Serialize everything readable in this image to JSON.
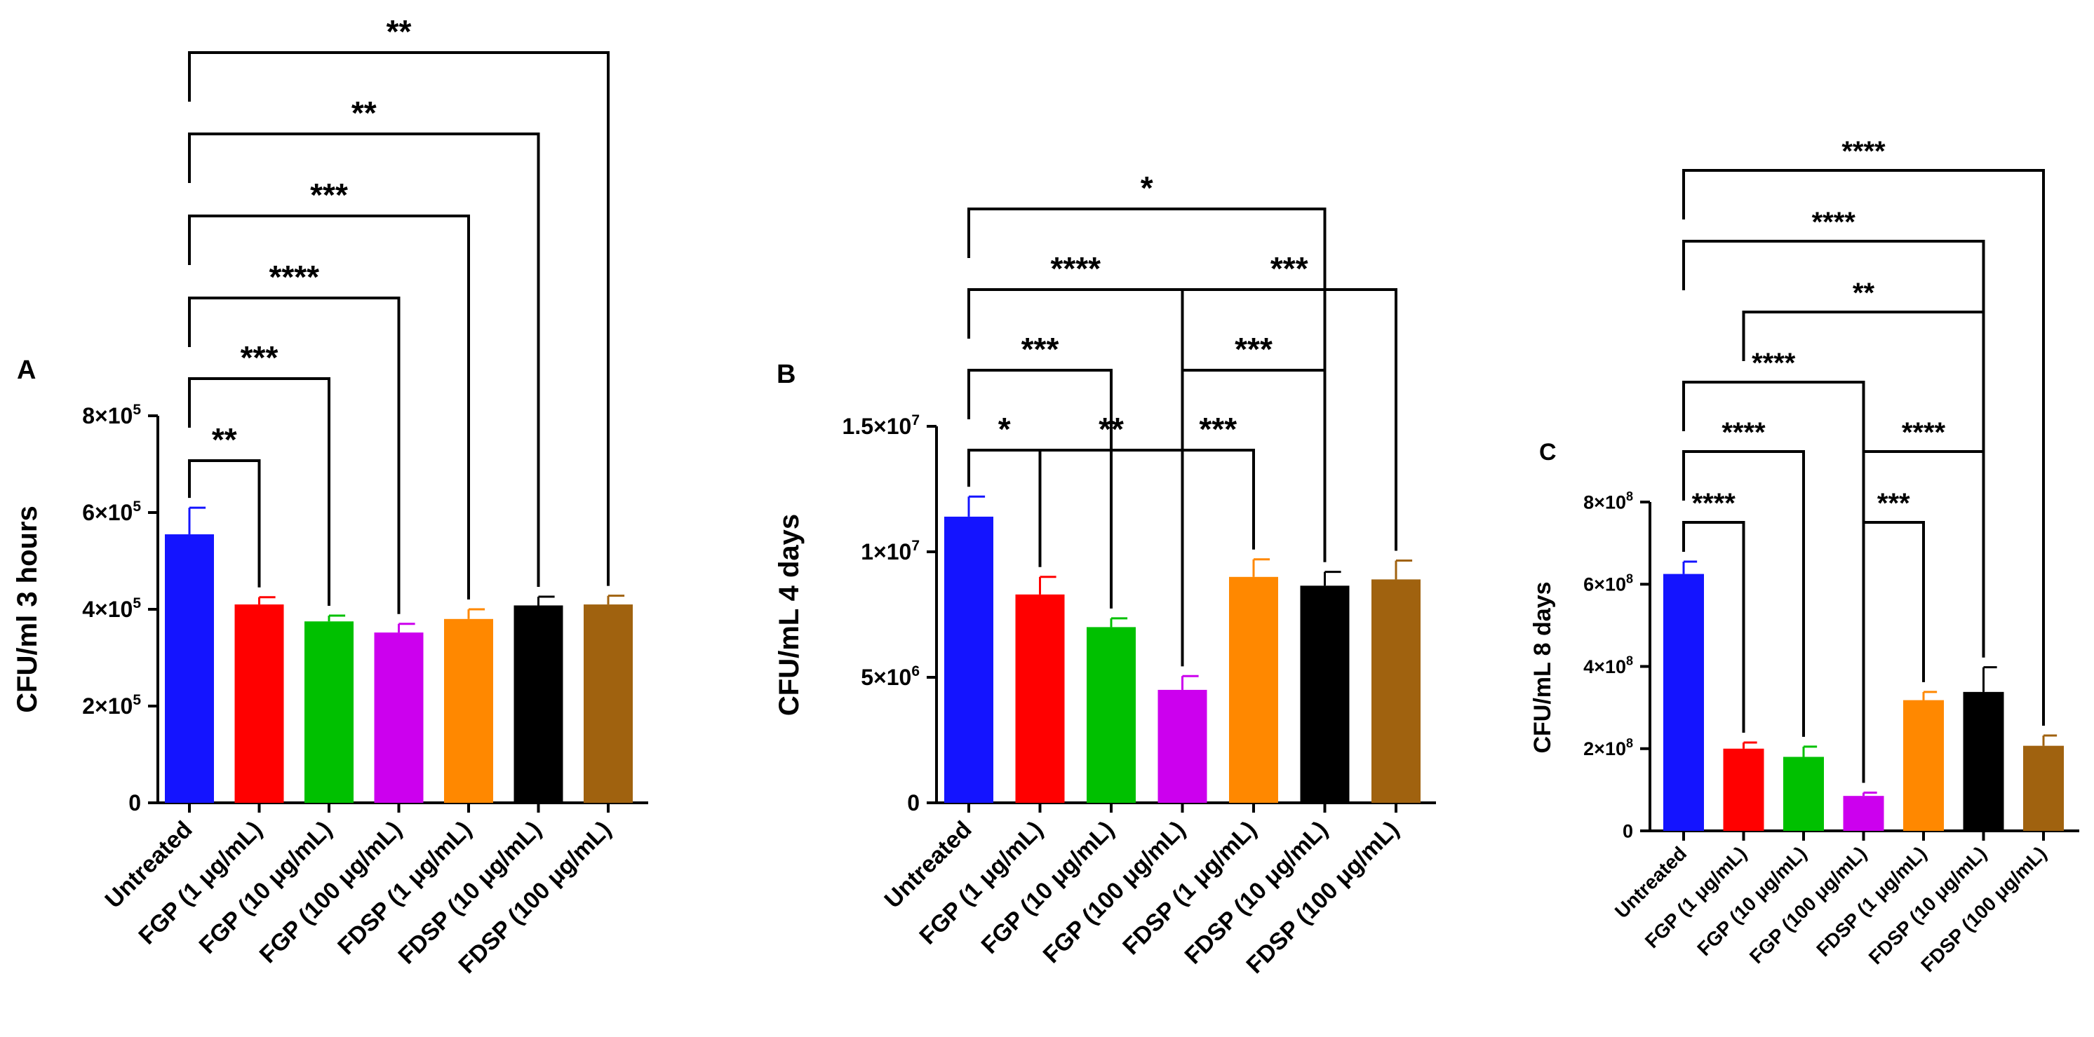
{
  "chart_data": [
    {
      "type": "bar",
      "panel_label": "A",
      "ylabel": "CFU/ml 3 hours",
      "ylim": [
        0,
        800000
      ],
      "yticks": [
        {
          "value": 0,
          "label": "0",
          "exp": ""
        },
        {
          "value": 200000,
          "label": "2×10",
          "exp": "5"
        },
        {
          "value": 400000,
          "label": "4×10",
          "exp": "5"
        },
        {
          "value": 600000,
          "label": "6×10",
          "exp": "5"
        },
        {
          "value": 800000,
          "label": "8×10",
          "exp": "5"
        }
      ],
      "categories": [
        "Untreated",
        "FGP (1 μg/mL)",
        "FGP (10 μg/mL)",
        "FGP (100 μg/mL)",
        "FDSP (1 μg/mL)",
        "FDSP (10 μg/mL)",
        "FDSP (100 μg/mL)"
      ],
      "values": [
        555000,
        410000,
        375000,
        352000,
        380000,
        408000,
        410000
      ],
      "errors": [
        55000,
        15000,
        12000,
        18000,
        20000,
        18000,
        18000
      ],
      "colors": [
        "#1414ff",
        "#ff0000",
        "#00c000",
        "#cc00ee",
        "#ff8800",
        "#000000",
        "#a0620f"
      ],
      "comparisons": [
        {
          "from": 0,
          "to": 1,
          "label": "**",
          "level": 345000
        },
        {
          "from": 0,
          "to": 2,
          "label": "***",
          "level": 365000
        },
        {
          "from": 0,
          "to": 3,
          "label": "****",
          "level": 380000
        },
        {
          "from": 0,
          "to": 4,
          "label": "***",
          "level": 395000
        },
        {
          "from": 0,
          "to": 5,
          "label": "**",
          "level": 410000
        },
        {
          "from": 0,
          "to": 6,
          "label": "**",
          "level": 425000
        }
      ]
    },
    {
      "type": "bar",
      "panel_label": "B",
      "ylabel": "CFU/mL 4 days",
      "ylim": [
        0,
        15000000
      ],
      "yticks": [
        {
          "value": 0,
          "label": "0",
          "exp": ""
        },
        {
          "value": 5000000,
          "label": "5×10",
          "exp": "6"
        },
        {
          "value": 10000000,
          "label": "1×10",
          "exp": "7"
        },
        {
          "value": 15000000,
          "label": "1.5×10",
          "exp": "7"
        }
      ],
      "categories": [
        "Untreated",
        "FGP (1 μg/mL)",
        "FGP (10 μg/mL)",
        "FGP (100 μg/mL)",
        "FDSP (1 μg/mL)",
        "FDSP (10 μg/mL)",
        "FDSP (100 μg/mL)"
      ],
      "values": [
        11400000,
        8300000,
        7000000,
        4500000,
        9000000,
        8650000,
        8900000
      ],
      "errors": [
        800000,
        700000,
        350000,
        550000,
        700000,
        550000,
        750000
      ],
      "colors": [
        "#1414ff",
        "#ff0000",
        "#00c000",
        "#cc00ee",
        "#ff8800",
        "#000000",
        "#a0620f"
      ],
      "comparisons": [
        {
          "from": 0,
          "to": 1,
          "label": "*",
          "level": 0
        },
        {
          "from": 1,
          "to": 3,
          "label": "**",
          "level": 0
        },
        {
          "from": 3,
          "to": 4,
          "label": "***",
          "level": 0
        },
        {
          "from": 0,
          "to": 2,
          "label": "***",
          "level": 1
        },
        {
          "from": 3,
          "to": 5,
          "label": "***",
          "level": 1
        },
        {
          "from": 0,
          "to": 3,
          "label": "****",
          "level": 2
        },
        {
          "from": 3,
          "to": 6,
          "label": "***",
          "level": 2
        },
        {
          "from": 0,
          "to": 5,
          "label": "*",
          "level": 3
        }
      ]
    },
    {
      "type": "bar",
      "panel_label": "C",
      "ylabel": "CFU/mL 8 days",
      "ylim": [
        0,
        800000000
      ],
      "yticks": [
        {
          "value": 0,
          "label": "0",
          "exp": ""
        },
        {
          "value": 200000000,
          "label": "2×10",
          "exp": "8"
        },
        {
          "value": 400000000,
          "label": "4×10",
          "exp": "8"
        },
        {
          "value": 600000000,
          "label": "6×10",
          "exp": "8"
        },
        {
          "value": 800000000,
          "label": "8×10",
          "exp": "8"
        }
      ],
      "categories": [
        "Untreated",
        "FGP (1 μg/mL)",
        "FGP (10 μg/mL)",
        "FGP (100 μg/mL)",
        "FDSP (1 μg/mL)",
        "FDSP (10 μg/mL)",
        "FDSP (100 μg/mL)"
      ],
      "values": [
        625000000,
        200000000,
        180000000,
        85000000,
        318000000,
        338000000,
        207000000
      ],
      "errors": [
        30000000,
        15000000,
        25000000,
        8000000,
        20000000,
        60000000,
        25000000
      ],
      "colors": [
        "#1414ff",
        "#ff0000",
        "#00c000",
        "#cc00ee",
        "#ff8800",
        "#000000",
        "#a0620f"
      ],
      "comparisons": [
        {
          "from": 0,
          "to": 1,
          "label": "****",
          "level": 0
        },
        {
          "from": 3,
          "to": 4,
          "label": "***",
          "level": 0
        },
        {
          "from": 0,
          "to": 2,
          "label": "****",
          "level": 1
        },
        {
          "from": 3,
          "to": 5,
          "label": "****",
          "level": 1
        },
        {
          "from": 0,
          "to": 3,
          "label": "****",
          "level": 2
        },
        {
          "from": 1,
          "to": 5,
          "label": "**",
          "level": 3
        },
        {
          "from": 0,
          "to": 5,
          "label": "****",
          "level": 4
        },
        {
          "from": 0,
          "to": 6,
          "label": "****",
          "level": 5
        }
      ]
    }
  ]
}
